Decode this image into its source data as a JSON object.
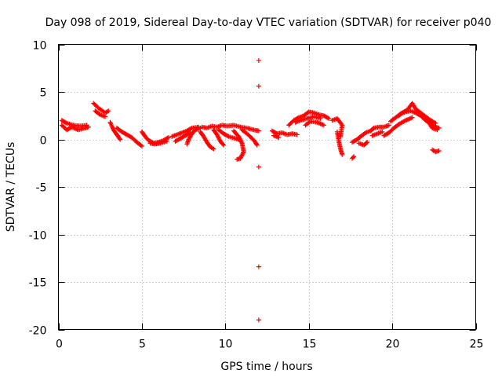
{
  "chart_data": {
    "type": "scatter",
    "title": "Day 098 of 2019, Sidereal Day-to-day VTEC variation (SDTVAR) for receiver p040",
    "xlabel": "GPS time / hours",
    "ylabel": "SDTVAR / TECUs",
    "xlim": [
      0,
      25
    ],
    "ylim": [
      -20,
      10
    ],
    "xticks": [
      0,
      5,
      10,
      15,
      20,
      25
    ],
    "yticks": [
      -20,
      -15,
      -10,
      -5,
      0,
      5,
      10
    ],
    "grid": true,
    "marker": "+",
    "marker_color": "#ff0000",
    "series": [
      {
        "name": "SDTVAR",
        "tracks": [
          [
            [
              0.2,
              1.5
            ],
            [
              0.5,
              1.0
            ],
            [
              0.8,
              1.3
            ],
            [
              1.2,
              1.0
            ],
            [
              1.6,
              1.2
            ],
            [
              1.8,
              1.3
            ]
          ],
          [
            [
              0.2,
              2.0
            ],
            [
              0.5,
              1.7
            ],
            [
              0.9,
              1.5
            ],
            [
              1.3,
              1.4
            ],
            [
              1.7,
              1.5
            ]
          ],
          [
            [
              2.1,
              3.8
            ],
            [
              2.4,
              3.3
            ],
            [
              2.8,
              2.8
            ],
            [
              3.0,
              3.0
            ]
          ],
          [
            [
              2.2,
              3.0
            ],
            [
              2.5,
              2.6
            ],
            [
              2.8,
              2.4
            ]
          ],
          [
            [
              3.1,
              1.8
            ],
            [
              3.3,
              1.0
            ],
            [
              3.5,
              0.5
            ],
            [
              3.7,
              0.0
            ]
          ],
          [
            [
              3.5,
              1.2
            ],
            [
              3.8,
              0.8
            ],
            [
              4.1,
              0.5
            ],
            [
              4.4,
              0.2
            ],
            [
              4.7,
              -0.3
            ],
            [
              5.0,
              -0.7
            ]
          ],
          [
            [
              5.0,
              0.8
            ],
            [
              5.2,
              0.3
            ],
            [
              5.4,
              -0.1
            ],
            [
              5.7,
              -0.4
            ],
            [
              6.0,
              -0.3
            ],
            [
              6.3,
              -0.1
            ],
            [
              6.6,
              0.2
            ]
          ],
          [
            [
              5.5,
              -0.4
            ],
            [
              5.8,
              -0.5
            ],
            [
              6.1,
              -0.4
            ],
            [
              6.5,
              -0.2
            ]
          ],
          [
            [
              6.8,
              0.3
            ],
            [
              7.1,
              0.5
            ],
            [
              7.4,
              0.7
            ],
            [
              7.7,
              0.9
            ],
            [
              8.0,
              1.2
            ],
            [
              8.4,
              1.3
            ]
          ],
          [
            [
              7.0,
              -0.2
            ],
            [
              7.3,
              0.1
            ],
            [
              7.6,
              0.4
            ],
            [
              7.9,
              0.7
            ]
          ],
          [
            [
              7.7,
              -0.5
            ],
            [
              7.8,
              0.0
            ],
            [
              8.0,
              0.6
            ],
            [
              8.2,
              1.0
            ],
            [
              8.5,
              1.2
            ]
          ],
          [
            [
              8.6,
              1.3
            ],
            [
              8.9,
              1.2
            ],
            [
              9.2,
              1.4
            ],
            [
              9.5,
              1.3
            ],
            [
              9.8,
              1.5
            ],
            [
              10.1,
              1.4
            ],
            [
              10.5,
              1.5
            ],
            [
              10.9,
              1.3
            ],
            [
              11.3,
              1.2
            ],
            [
              11.7,
              1.0
            ],
            [
              12.0,
              0.9
            ]
          ],
          [
            [
              8.5,
              0.8
            ],
            [
              8.7,
              0.3
            ],
            [
              8.9,
              -0.3
            ],
            [
              9.1,
              -0.8
            ],
            [
              9.3,
              -1.0
            ]
          ],
          [
            [
              9.3,
              1.0
            ],
            [
              9.5,
              0.5
            ],
            [
              9.7,
              -0.2
            ],
            [
              9.9,
              -0.6
            ]
          ],
          [
            [
              9.6,
              1.0
            ],
            [
              9.9,
              0.6
            ],
            [
              10.2,
              0.3
            ],
            [
              10.6,
              0.1
            ],
            [
              10.9,
              -0.1
            ]
          ],
          [
            [
              10.5,
              0.9
            ],
            [
              10.8,
              0.3
            ],
            [
              11.0,
              -0.4
            ],
            [
              11.1,
              -1.3
            ],
            [
              10.9,
              -2.0
            ],
            [
              10.7,
              -2.1
            ]
          ],
          [
            [
              11.0,
              1.0
            ],
            [
              11.3,
              0.6
            ],
            [
              11.6,
              0.1
            ],
            [
              11.8,
              -0.3
            ],
            [
              11.9,
              -0.6
            ]
          ],
          [
            [
              12.0,
              8.3
            ]
          ],
          [
            [
              12.0,
              5.6
            ]
          ],
          [
            [
              12.0,
              -2.9
            ]
          ],
          [
            [
              12.0,
              -13.4
            ]
          ],
          [
            [
              12.0,
              -19.0
            ]
          ],
          [
            [
              12.8,
              0.9
            ],
            [
              13.1,
              0.6
            ],
            [
              13.4,
              0.7
            ],
            [
              13.7,
              0.5
            ],
            [
              14.0,
              0.6
            ],
            [
              14.3,
              0.5
            ]
          ],
          [
            [
              12.9,
              0.4
            ],
            [
              13.2,
              0.2
            ]
          ],
          [
            [
              13.8,
              1.5
            ],
            [
              14.1,
              2.0
            ],
            [
              14.4,
              2.3
            ],
            [
              14.7,
              2.5
            ],
            [
              15.0,
              2.9
            ],
            [
              15.3,
              2.8
            ],
            [
              15.6,
              2.6
            ],
            [
              15.9,
              2.5
            ],
            [
              16.2,
              2.2
            ]
          ],
          [
            [
              14.2,
              1.8
            ],
            [
              14.5,
              2.0
            ],
            [
              14.9,
              2.2
            ],
            [
              15.3,
              2.4
            ],
            [
              15.7,
              2.2
            ]
          ],
          [
            [
              14.8,
              1.5
            ],
            [
              15.1,
              1.9
            ],
            [
              15.5,
              1.8
            ],
            [
              15.9,
              1.5
            ]
          ],
          [
            [
              16.4,
              2.0
            ],
            [
              16.7,
              2.2
            ],
            [
              17.0,
              1.5
            ],
            [
              16.9,
              0.3
            ]
          ],
          [
            [
              16.7,
              0.8
            ],
            [
              16.8,
              -0.2
            ],
            [
              16.9,
              -1.0
            ],
            [
              17.0,
              -1.6
            ]
          ],
          [
            [
              17.6,
              -2.0
            ],
            [
              17.7,
              -1.8
            ]
          ],
          [
            [
              17.6,
              -0.3
            ],
            [
              17.9,
              0.0
            ],
            [
              18.1,
              0.3
            ],
            [
              18.4,
              0.7
            ],
            [
              18.7,
              0.9
            ],
            [
              18.9,
              1.2
            ],
            [
              19.2,
              1.3
            ],
            [
              19.5,
              1.3
            ],
            [
              19.8,
              1.5
            ]
          ],
          [
            [
              18.0,
              -0.4
            ],
            [
              18.3,
              -0.6
            ],
            [
              18.5,
              -0.3
            ]
          ],
          [
            [
              18.8,
              0.4
            ],
            [
              19.1,
              0.6
            ],
            [
              19.4,
              0.8
            ]
          ],
          [
            [
              19.5,
              0.4
            ],
            [
              19.8,
              0.7
            ],
            [
              20.1,
              1.2
            ],
            [
              20.4,
              1.6
            ],
            [
              20.8,
              2.0
            ],
            [
              21.2,
              2.3
            ]
          ],
          [
            [
              19.9,
              1.9
            ],
            [
              20.2,
              2.3
            ],
            [
              20.5,
              2.7
            ],
            [
              20.8,
              2.9
            ],
            [
              21.1,
              3.0
            ],
            [
              21.4,
              2.8
            ],
            [
              21.7,
              2.5
            ],
            [
              22.0,
              2.0
            ],
            [
              22.3,
              1.6
            ],
            [
              22.6,
              1.3
            ],
            [
              22.8,
              1.2
            ]
          ],
          [
            [
              20.4,
              2.5
            ],
            [
              20.6,
              2.8
            ],
            [
              20.9,
              3.1
            ],
            [
              21.2,
              3.8
            ],
            [
              21.4,
              3.2
            ],
            [
              21.7,
              2.8
            ],
            [
              22.0,
              2.4
            ],
            [
              22.3,
              2.0
            ],
            [
              22.6,
              1.7
            ]
          ],
          [
            [
              21.5,
              3.0
            ],
            [
              21.8,
              2.6
            ],
            [
              22.1,
              2.0
            ],
            [
              22.4,
              1.2
            ],
            [
              22.7,
              1.0
            ]
          ],
          [
            [
              22.4,
              -1.1
            ],
            [
              22.6,
              -1.3
            ],
            [
              22.8,
              -1.2
            ]
          ]
        ]
      }
    ]
  }
}
